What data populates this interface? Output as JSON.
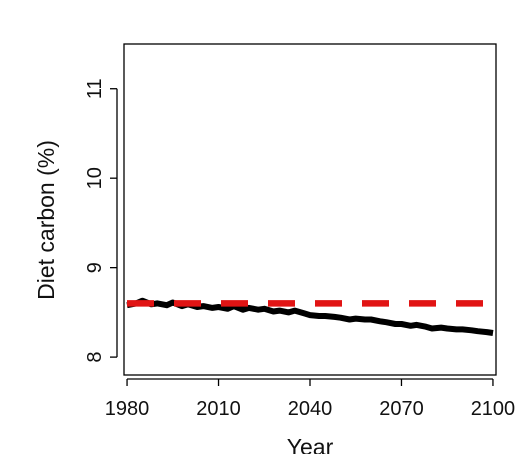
{
  "chart_data": {
    "type": "line",
    "title": "",
    "xlabel": "Year",
    "ylabel": "Diet carbon (%)",
    "xlim": [
      1979,
      2101
    ],
    "ylim": [
      7.8,
      11.5
    ],
    "x_ticks": [
      "1980",
      "2010",
      "2040",
      "2070",
      "2100"
    ],
    "y_ticks": [
      "8",
      "9",
      "10",
      "11"
    ],
    "grid": false,
    "legend": "none",
    "series": [
      {
        "style": "solid",
        "color": "#000000",
        "x": [
          1980,
          1983,
          1985,
          1988,
          1990,
          1993,
          1995,
          1998,
          2000,
          2003,
          2005,
          2008,
          2010,
          2013,
          2015,
          2018,
          2020,
          2023,
          2025,
          2028,
          2030,
          2033,
          2035,
          2038,
          2040,
          2043,
          2045,
          2048,
          2050,
          2053,
          2055,
          2058,
          2060,
          2063,
          2065,
          2068,
          2070,
          2073,
          2075,
          2078,
          2080,
          2083,
          2085,
          2088,
          2090,
          2093,
          2095,
          2098,
          2100
        ],
        "y": [
          8.58,
          8.6,
          8.63,
          8.59,
          8.6,
          8.58,
          8.61,
          8.57,
          8.59,
          8.56,
          8.57,
          8.55,
          8.56,
          8.54,
          8.57,
          8.53,
          8.55,
          8.53,
          8.54,
          8.51,
          8.52,
          8.5,
          8.52,
          8.49,
          8.47,
          8.46,
          8.46,
          8.45,
          8.44,
          8.42,
          8.43,
          8.42,
          8.42,
          8.4,
          8.39,
          8.37,
          8.37,
          8.35,
          8.36,
          8.34,
          8.32,
          8.33,
          8.32,
          8.31,
          8.31,
          8.3,
          8.29,
          8.28,
          8.27
        ]
      },
      {
        "style": "dashed",
        "color": "#e11414",
        "x": [
          1980,
          2100
        ],
        "y": [
          8.6,
          8.6
        ]
      }
    ]
  }
}
